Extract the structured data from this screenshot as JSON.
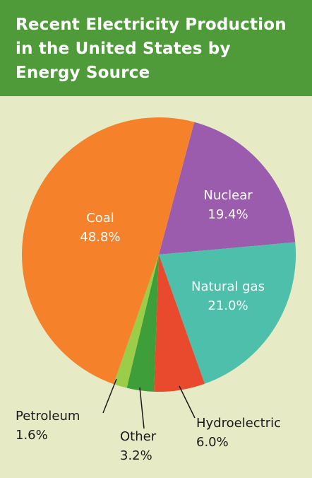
{
  "header": {
    "title": "Recent Electricity Production\nin the United States by\nEnergy Source"
  },
  "chart_data": {
    "type": "pie",
    "title": "Recent Electricity Production in the United States by Energy Source",
    "start_angle_deg": 15,
    "slices": [
      {
        "label": "Nuclear",
        "value": 19.4,
        "value_label": "19.4%",
        "color": "#9b5cae",
        "label_style": "inside"
      },
      {
        "label": "Natural gas",
        "value": 21.0,
        "value_label": "21.0%",
        "color": "#4dbfaa",
        "label_style": "inside"
      },
      {
        "label": "Hydroelectric",
        "value": 6.0,
        "value_label": "6.0%",
        "color": "#e9492d",
        "label_style": "outside"
      },
      {
        "label": "Other",
        "value": 3.2,
        "value_label": "3.2%",
        "color": "#3e9e3a",
        "label_style": "outside"
      },
      {
        "label": "Petroleum",
        "value": 1.6,
        "value_label": "1.6%",
        "color": "#9ccd48",
        "label_style": "outside"
      },
      {
        "label": "Coal",
        "value": 48.8,
        "value_label": "48.8%",
        "color": "#f5822a",
        "label_style": "inside"
      }
    ]
  }
}
